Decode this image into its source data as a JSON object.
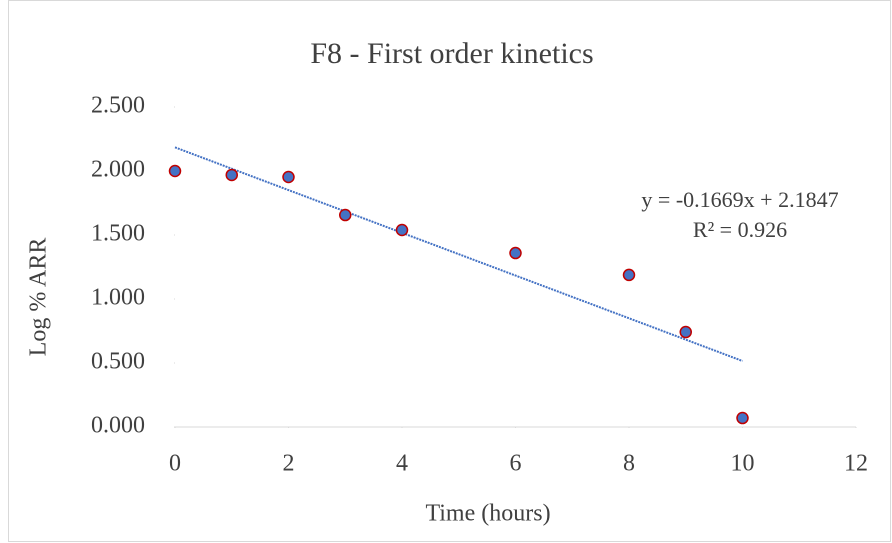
{
  "chart_data": {
    "type": "line",
    "title": "F8 - First order kinetics",
    "x_label": "Time (hours)",
    "y_label": "Log % ARR",
    "x": [
      0,
      1,
      2,
      3,
      4,
      6,
      8,
      9,
      10
    ],
    "series": [
      {
        "name": "F8",
        "color": "#c00000",
        "marker_color": "#4472c4",
        "values": [
          2.0,
          1.969,
          1.953,
          1.656,
          1.539,
          1.359,
          1.188,
          0.742,
          0.07
        ]
      }
    ],
    "trendline": {
      "slope": -0.1669,
      "intercept": 2.1847,
      "color": "#4472c4",
      "equation": "y = -0.1669x + 2.1847",
      "r2_label": "R² = 0.926"
    },
    "xlim": [
      0,
      12
    ],
    "xticks": [
      0,
      2,
      4,
      6,
      8,
      10,
      12
    ],
    "ylim": [
      0,
      2.5
    ],
    "yticks": [
      {
        "value": 0,
        "label": "0.000"
      },
      {
        "value": 0.5,
        "label": "0.500"
      },
      {
        "value": 1,
        "label": "1.000"
      },
      {
        "value": 1.5,
        "label": "1.500"
      },
      {
        "value": 2,
        "label": "2.000"
      },
      {
        "value": 2.5,
        "label": "2.500"
      }
    ],
    "grid": false
  }
}
